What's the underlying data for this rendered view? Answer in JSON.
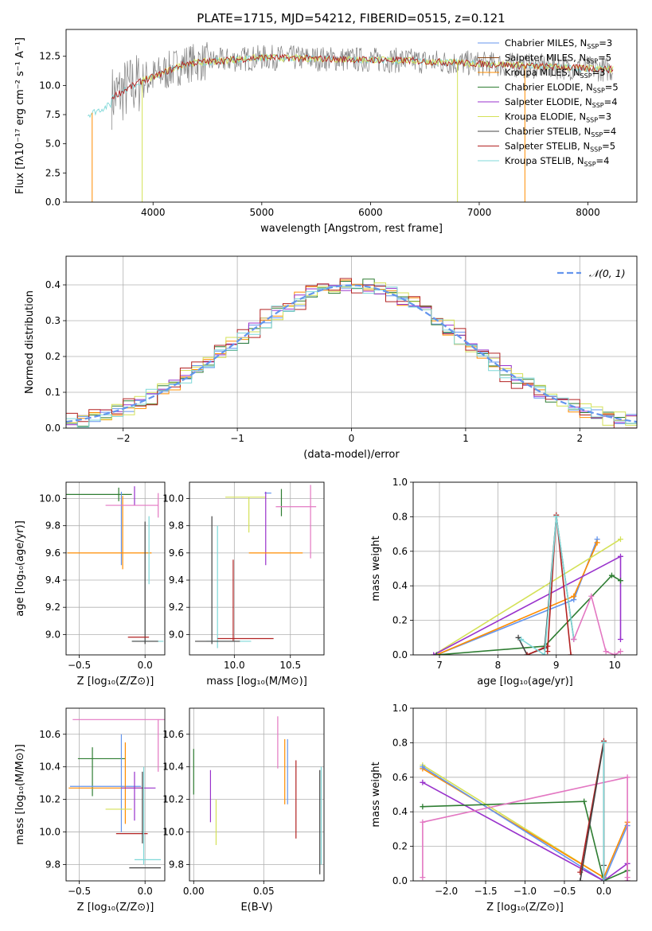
{
  "figure": {
    "title": "PLATE=1715, MJD=54212, FIBERID=0515, z=0.121"
  },
  "colors": {
    "Chabrier MILES": "#6495ED",
    "Salpeter MILES": "#8B4513",
    "Kroupa MILES": "#FF8C00",
    "Chabrier ELODIE": "#2E7D32",
    "Salpeter ELODIE": "#9932CC",
    "Kroupa ELODIE": "#D4E157",
    "Chabrier STELIB": "#444444",
    "Salpeter STELIB": "#B22222",
    "Kroupa STELIB": "#7FD8D8"
  },
  "chart_data": [
    {
      "id": "spectrum",
      "type": "line",
      "title": "PLATE=1715, MJD=54212, FIBERID=0515, z=0.121",
      "xlabel": "wavelength [Angstrom, rest frame]",
      "ylabel": "Flux [fλ10⁻¹⁷ erg cm⁻² s⁻¹ A⁻¹]",
      "xlim": [
        3200,
        8450
      ],
      "ylim": [
        0,
        14.8
      ],
      "xticks": [
        4000,
        5000,
        6000,
        7000,
        8000
      ],
      "yticks": [
        0.0,
        2.5,
        5.0,
        7.5,
        10.0,
        12.5
      ],
      "grid": false,
      "legend_position": "right",
      "legend": [
        {
          "label": "Chabrier MILES, N",
          "sub": "SSP",
          "suffix": "=3",
          "color": "#6495ED"
        },
        {
          "label": "Salpeter MILES, N",
          "sub": "SSP",
          "suffix": "=5",
          "color": "#8B4513"
        },
        {
          "label": "Kroupa MILES, N",
          "sub": "SSP",
          "suffix": "=3",
          "color": "#FF8C00"
        },
        {
          "label": "Chabrier ELODIE, N",
          "sub": "SSP",
          "suffix": "=5",
          "color": "#2E7D32"
        },
        {
          "label": "Salpeter ELODIE, N",
          "sub": "SSP",
          "suffix": "=4",
          "color": "#9932CC"
        },
        {
          "label": "Kroupa ELODIE, N",
          "sub": "SSP",
          "suffix": "=3",
          "color": "#D4E157"
        },
        {
          "label": "Chabrier STELIB, N",
          "sub": "SSP",
          "suffix": "=4",
          "color": "#444444"
        },
        {
          "label": "Salpeter STELIB, N",
          "sub": "SSP",
          "suffix": "=5",
          "color": "#B22222"
        },
        {
          "label": "Kroupa STELIB, N",
          "sub": "SSP",
          "suffix": "=4",
          "color": "#7FD8D8"
        }
      ],
      "data_series": {
        "color": "#808080",
        "x_range": [
          3620,
          8230
        ],
        "base_level": 12.3
      },
      "model_series": [
        {
          "color": "#7FD8D8",
          "x_range": [
            3400,
            8230
          ]
        },
        {
          "color": "#D4E157",
          "x_range": [
            3900,
            8230
          ]
        },
        {
          "color": "#B22222",
          "x_range": [
            3620,
            8230
          ]
        }
      ],
      "dropouts": [
        {
          "x": 3440,
          "color": "#FF8C00"
        },
        {
          "x": 3900,
          "color": "#D4E157"
        },
        {
          "x": 6800,
          "color": "#D4E157"
        },
        {
          "x": 7420,
          "color": "#FF8C00"
        }
      ]
    },
    {
      "id": "residuals",
      "type": "line",
      "xlabel": "(data-model)/error",
      "ylabel": "Normed distribution",
      "xlim": [
        -2.5,
        2.5
      ],
      "ylim": [
        0,
        0.48
      ],
      "xticks": [
        -2,
        -1,
        0,
        1,
        2
      ],
      "yticks": [
        0.0,
        0.1,
        0.2,
        0.3,
        0.4
      ],
      "grid": true,
      "legend_position": "top-right",
      "legend": [
        {
          "label": "𝒩(0, 1)",
          "color": "#6495ED",
          "style": "dashed"
        }
      ],
      "gaussian": {
        "mean": 0,
        "sigma": 1
      },
      "histograms": [
        {
          "color": "#6495ED",
          "jitter": 0.012
        },
        {
          "color": "#FF8C00",
          "jitter": 0.015
        },
        {
          "color": "#2E7D32",
          "jitter": 0.018
        },
        {
          "color": "#9932CC",
          "jitter": 0.016
        },
        {
          "color": "#D4E157",
          "jitter": 0.02
        },
        {
          "color": "#B22222",
          "jitter": 0.022
        },
        {
          "color": "#7FD8D8",
          "jitter": 0.014
        }
      ]
    },
    {
      "id": "age-vs-Z",
      "type": "scatter",
      "xlabel": "Z [log₁₀(Z/Z⊙)]",
      "ylabel": "age  [log₁₀(age/yr)]",
      "xlim": [
        -0.6,
        0.15
      ],
      "ylim": [
        8.85,
        10.12
      ],
      "xticks": [
        -0.5,
        0.0
      ],
      "yticks": [
        9.0,
        9.2,
        9.4,
        9.6,
        9.8,
        10.0
      ],
      "grid": true,
      "points": [
        {
          "x": -0.35,
          "xerr": 0.25,
          "y": 10.03,
          "yerr": 0.0,
          "color": "#2E7D32"
        },
        {
          "x": -0.2,
          "xerr": 0.0,
          "y": 10.03,
          "yerr": 0.05,
          "color": "#2E7D32"
        },
        {
          "x": -0.18,
          "xerr": 0.0,
          "y": 9.78,
          "yerr": 0.27,
          "color": "#6495ED"
        },
        {
          "x": -0.17,
          "xerr": 0.0,
          "y": 9.75,
          "yerr": 0.27,
          "color": "#FF8C00"
        },
        {
          "x": -0.08,
          "xerr": 0.0,
          "y": 10.02,
          "yerr": 0.07,
          "color": "#9932CC"
        },
        {
          "x": -0.27,
          "xerr": 0.32,
          "y": 9.6,
          "yerr": 0.0,
          "color": "#FF8C00"
        },
        {
          "x": -0.1,
          "xerr": 0.2,
          "y": 9.95,
          "yerr": 0.0,
          "color": "#E377C2"
        },
        {
          "x": 0.1,
          "xerr": 0.0,
          "y": 9.95,
          "yerr": 0.09,
          "color": "#E377C2"
        },
        {
          "x": 0.03,
          "xerr": 0.0,
          "y": 9.62,
          "yerr": 0.25,
          "color": "#7FD8D8"
        },
        {
          "x": 0.0,
          "xerr": 0.0,
          "y": 9.38,
          "yerr": 0.45,
          "color": "#444444"
        },
        {
          "x": -0.05,
          "xerr": 0.08,
          "y": 8.98,
          "yerr": 0.0,
          "color": "#B22222"
        },
        {
          "x": 0.02,
          "xerr": 0.12,
          "y": 8.95,
          "yerr": 0.0,
          "color": "#7FD8D8"
        },
        {
          "x": 0.0,
          "xerr": 0.1,
          "y": 8.95,
          "yerr": 0.0,
          "color": "#444444"
        }
      ]
    },
    {
      "id": "age-vs-mass",
      "type": "scatter",
      "xlabel": "mass [log₁₀(M/M⊙)]",
      "ylabel": "",
      "xlim": [
        9.6,
        10.8
      ],
      "ylim": [
        8.85,
        10.12
      ],
      "xticks": [
        10.0,
        10.5
      ],
      "yticks": [
        9.0,
        9.2,
        9.4,
        9.6,
        9.8,
        10.0
      ],
      "grid": true,
      "points": [
        {
          "x": 10.1,
          "xerr": 0.18,
          "y": 10.01,
          "yerr": 0.0,
          "color": "#D4E157"
        },
        {
          "x": 10.13,
          "xerr": 0.0,
          "y": 9.88,
          "yerr": 0.13,
          "color": "#D4E157"
        },
        {
          "x": 10.3,
          "xerr": 0.03,
          "y": 10.04,
          "yerr": 0.0,
          "color": "#6495ED"
        },
        {
          "x": 10.28,
          "xerr": 0.0,
          "y": 9.78,
          "yerr": 0.27,
          "color": "#9932CC"
        },
        {
          "x": 10.42,
          "xerr": 0.0,
          "y": 9.97,
          "yerr": 0.1,
          "color": "#2E7D32"
        },
        {
          "x": 10.37,
          "xerr": 0.24,
          "y": 9.6,
          "yerr": 0.0,
          "color": "#FF8C00"
        },
        {
          "x": 10.55,
          "xerr": 0.18,
          "y": 9.94,
          "yerr": 0.0,
          "color": "#E377C2"
        },
        {
          "x": 10.68,
          "xerr": 0.0,
          "y": 9.83,
          "yerr": 0.27,
          "color": "#E377C2"
        },
        {
          "x": 9.8,
          "xerr": 0.0,
          "y": 9.4,
          "yerr": 0.47,
          "color": "#444444"
        },
        {
          "x": 9.85,
          "xerr": 0.0,
          "y": 9.35,
          "yerr": 0.45,
          "color": "#7FD8D8"
        },
        {
          "x": 9.99,
          "xerr": 0.0,
          "y": 9.25,
          "yerr": 0.3,
          "color": "#B22222"
        },
        {
          "x": 10.1,
          "xerr": 0.25,
          "y": 8.97,
          "yerr": 0.0,
          "color": "#B22222"
        },
        {
          "x": 9.95,
          "xerr": 0.2,
          "y": 8.95,
          "yerr": 0.0,
          "color": "#7FD8D8"
        },
        {
          "x": 9.85,
          "xerr": 0.2,
          "y": 8.95,
          "yerr": 0.0,
          "color": "#444444"
        }
      ]
    },
    {
      "id": "weight-vs-age",
      "type": "line",
      "xlabel": "age  [log₁₀(age/yr)]",
      "ylabel": "mass weight",
      "xlim": [
        6.55,
        10.38
      ],
      "ylim": [
        0,
        1.0
      ],
      "xticks": [
        7,
        8,
        9,
        10
      ],
      "yticks": [
        0.0,
        0.2,
        0.4,
        0.6,
        0.8,
        1.0
      ],
      "grid": true,
      "series": [
        {
          "color": "#6495ED",
          "x": [
            6.95,
            9.3,
            9.7
          ],
          "y": [
            0.0,
            0.32,
            0.67
          ]
        },
        {
          "color": "#FF8C00",
          "x": [
            6.95,
            9.3,
            9.7
          ],
          "y": [
            0.0,
            0.34,
            0.65
          ]
        },
        {
          "color": "#D4E157",
          "x": [
            6.9,
            10.1
          ],
          "y": [
            0.0,
            0.67
          ]
        },
        {
          "color": "#9932CC",
          "x": [
            6.9,
            10.1,
            10.1
          ],
          "y": [
            0.0,
            0.57,
            0.09
          ]
        },
        {
          "color": "#2E7D32",
          "x": [
            6.95,
            8.8,
            9.95,
            10.1
          ],
          "y": [
            0.0,
            0.05,
            0.46,
            0.43
          ]
        },
        {
          "color": "#444444",
          "x": [
            8.35,
            8.5,
            8.8,
            9.0,
            9.3
          ],
          "y": [
            0.1,
            0.0,
            0.04,
            0.8,
            0.09
          ]
        },
        {
          "color": "#B22222",
          "x": [
            8.5,
            8.85,
            8.85,
            9.0,
            9.25
          ],
          "y": [
            0.0,
            0.05,
            0.02,
            0.81,
            0.0
          ]
        },
        {
          "color": "#7FD8D8",
          "x": [
            8.4,
            8.8,
            9.0,
            9.3
          ],
          "y": [
            0.09,
            0.0,
            0.8,
            0.09
          ]
        },
        {
          "color": "#E377C2",
          "x": [
            9.3,
            9.6,
            9.85,
            10.0,
            10.1
          ],
          "y": [
            0.09,
            0.34,
            0.02,
            0.0,
            0.02
          ]
        }
      ]
    },
    {
      "id": "mass-vs-Z",
      "type": "scatter",
      "xlabel": "Z [log₁₀(Z/Z⊙)]",
      "ylabel": "mass [log₁₀(M/M⊙)]",
      "xlim": [
        -0.6,
        0.15
      ],
      "ylim": [
        9.7,
        10.76
      ],
      "xticks": [
        -0.5,
        0.0
      ],
      "yticks": [
        9.8,
        10.0,
        10.2,
        10.4,
        10.6
      ],
      "grid": true,
      "points": [
        {
          "x": -0.05,
          "xerr": 0.5,
          "y": 10.69,
          "yerr": 0.0,
          "color": "#E377C2"
        },
        {
          "x": 0.1,
          "xerr": 0.0,
          "y": 10.53,
          "yerr": 0.16,
          "color": "#E377C2"
        },
        {
          "x": -0.33,
          "xerr": 0.18,
          "y": 10.45,
          "yerr": 0.0,
          "color": "#2E7D32"
        },
        {
          "x": -0.4,
          "xerr": 0.0,
          "y": 10.37,
          "yerr": 0.15,
          "color": "#2E7D32"
        },
        {
          "x": -0.3,
          "xerr": 0.27,
          "y": 10.28,
          "yerr": 0.0,
          "color": "#6495ED"
        },
        {
          "x": -0.18,
          "xerr": 0.0,
          "y": 10.3,
          "yerr": 0.3,
          "color": "#6495ED"
        },
        {
          "x": -0.3,
          "xerr": 0.28,
          "y": 10.27,
          "yerr": 0.0,
          "color": "#FF8C00"
        },
        {
          "x": -0.15,
          "xerr": 0.0,
          "y": 10.3,
          "yerr": 0.25,
          "color": "#FF8C00"
        },
        {
          "x": -0.05,
          "xerr": 0.13,
          "y": 10.27,
          "yerr": 0.0,
          "color": "#9932CC"
        },
        {
          "x": -0.08,
          "xerr": 0.0,
          "y": 10.22,
          "yerr": 0.15,
          "color": "#9932CC"
        },
        {
          "x": -0.2,
          "xerr": 0.1,
          "y": 10.14,
          "yerr": 0.0,
          "color": "#D4E157"
        },
        {
          "x": -0.1,
          "xerr": 0.12,
          "y": 9.99,
          "yerr": 0.0,
          "color": "#B22222"
        },
        {
          "x": -0.02,
          "xerr": 0.0,
          "y": 10.15,
          "yerr": 0.22,
          "color": "#444444"
        },
        {
          "x": -0.01,
          "xerr": 0.0,
          "y": 10.1,
          "yerr": 0.3,
          "color": "#7FD8D8"
        },
        {
          "x": 0.02,
          "xerr": 0.1,
          "y": 9.83,
          "yerr": 0.0,
          "color": "#7FD8D8"
        },
        {
          "x": 0.0,
          "xerr": 0.12,
          "y": 9.78,
          "yerr": 0.0,
          "color": "#444444"
        }
      ]
    },
    {
      "id": "mass-vs-ebv",
      "type": "scatter",
      "xlabel": "E(B-V)",
      "ylabel": "",
      "xlim": [
        -0.003,
        0.093
      ],
      "ylim": [
        9.7,
        10.76
      ],
      "xticks": [
        0.0,
        0.05
      ],
      "yticks": [
        9.8,
        10.0,
        10.2,
        10.4,
        10.6
      ],
      "grid": true,
      "points": [
        {
          "x": 0.0,
          "xerr": 0.0,
          "y": 10.37,
          "yerr": 0.14,
          "color": "#2E7D32"
        },
        {
          "x": 0.012,
          "xerr": 0.0,
          "y": 10.22,
          "yerr": 0.16,
          "color": "#9932CC"
        },
        {
          "x": 0.016,
          "xerr": 0.0,
          "y": 10.06,
          "yerr": 0.14,
          "color": "#D4E157"
        },
        {
          "x": 0.06,
          "xerr": 0.0,
          "y": 10.55,
          "yerr": 0.16,
          "color": "#E377C2"
        },
        {
          "x": 0.065,
          "xerr": 0.0,
          "y": 10.37,
          "yerr": 0.2,
          "color": "#FF8C00"
        },
        {
          "x": 0.067,
          "xerr": 0.0,
          "y": 10.37,
          "yerr": 0.2,
          "color": "#6495ED"
        },
        {
          "x": 0.073,
          "xerr": 0.0,
          "y": 10.2,
          "yerr": 0.24,
          "color": "#B22222"
        },
        {
          "x": 0.09,
          "xerr": 0.0,
          "y": 10.06,
          "yerr": 0.32,
          "color": "#444444"
        },
        {
          "x": 0.091,
          "xerr": 0.0,
          "y": 10.1,
          "yerr": 0.3,
          "color": "#7FD8D8"
        }
      ]
    },
    {
      "id": "weight-vs-Z",
      "type": "line",
      "xlabel": "Z [log₁₀(Z/Z⊙)]",
      "ylabel": "mass weight",
      "xlim": [
        -2.42,
        0.42
      ],
      "ylim": [
        0,
        1.0
      ],
      "xticks": [
        -2.0,
        -1.5,
        -1.0,
        -0.5,
        0.0
      ],
      "yticks": [
        0.0,
        0.2,
        0.4,
        0.6,
        0.8,
        1.0
      ],
      "grid": true,
      "series": [
        {
          "color": "#D4E157",
          "x": [
            -2.3,
            0.0,
            0.0
          ],
          "y": [
            0.67,
            0.02,
            0.0
          ]
        },
        {
          "color": "#FF8C00",
          "x": [
            -2.3,
            0.0,
            0.3,
            0.3
          ],
          "y": [
            0.65,
            0.02,
            0.34,
            0.0
          ]
        },
        {
          "color": "#6495ED",
          "x": [
            -2.3,
            0.0,
            0.3
          ],
          "y": [
            0.66,
            0.0,
            0.32
          ]
        },
        {
          "color": "#9932CC",
          "x": [
            -2.3,
            0.0,
            0.3,
            0.3
          ],
          "y": [
            0.57,
            0.0,
            0.1,
            0.0
          ]
        },
        {
          "color": "#2E7D32",
          "x": [
            -2.3,
            -0.25,
            0.0,
            0.3
          ],
          "y": [
            0.43,
            0.46,
            0.0,
            0.06
          ]
        },
        {
          "color": "#E377C2",
          "x": [
            -2.3,
            -2.3,
            0.3,
            0.3
          ],
          "y": [
            0.02,
            0.34,
            0.6,
            0.02
          ]
        },
        {
          "color": "#B22222",
          "x": [
            -0.3,
            0.0,
            0.0
          ],
          "y": [
            0.05,
            0.81,
            0.0
          ]
        },
        {
          "color": "#444444",
          "x": [
            -0.3,
            0.0,
            0.0
          ],
          "y": [
            0.0,
            0.8,
            0.09
          ]
        },
        {
          "color": "#7FD8D8",
          "x": [
            0.0,
            0.0
          ],
          "y": [
            0.0,
            0.8
          ]
        }
      ]
    }
  ]
}
